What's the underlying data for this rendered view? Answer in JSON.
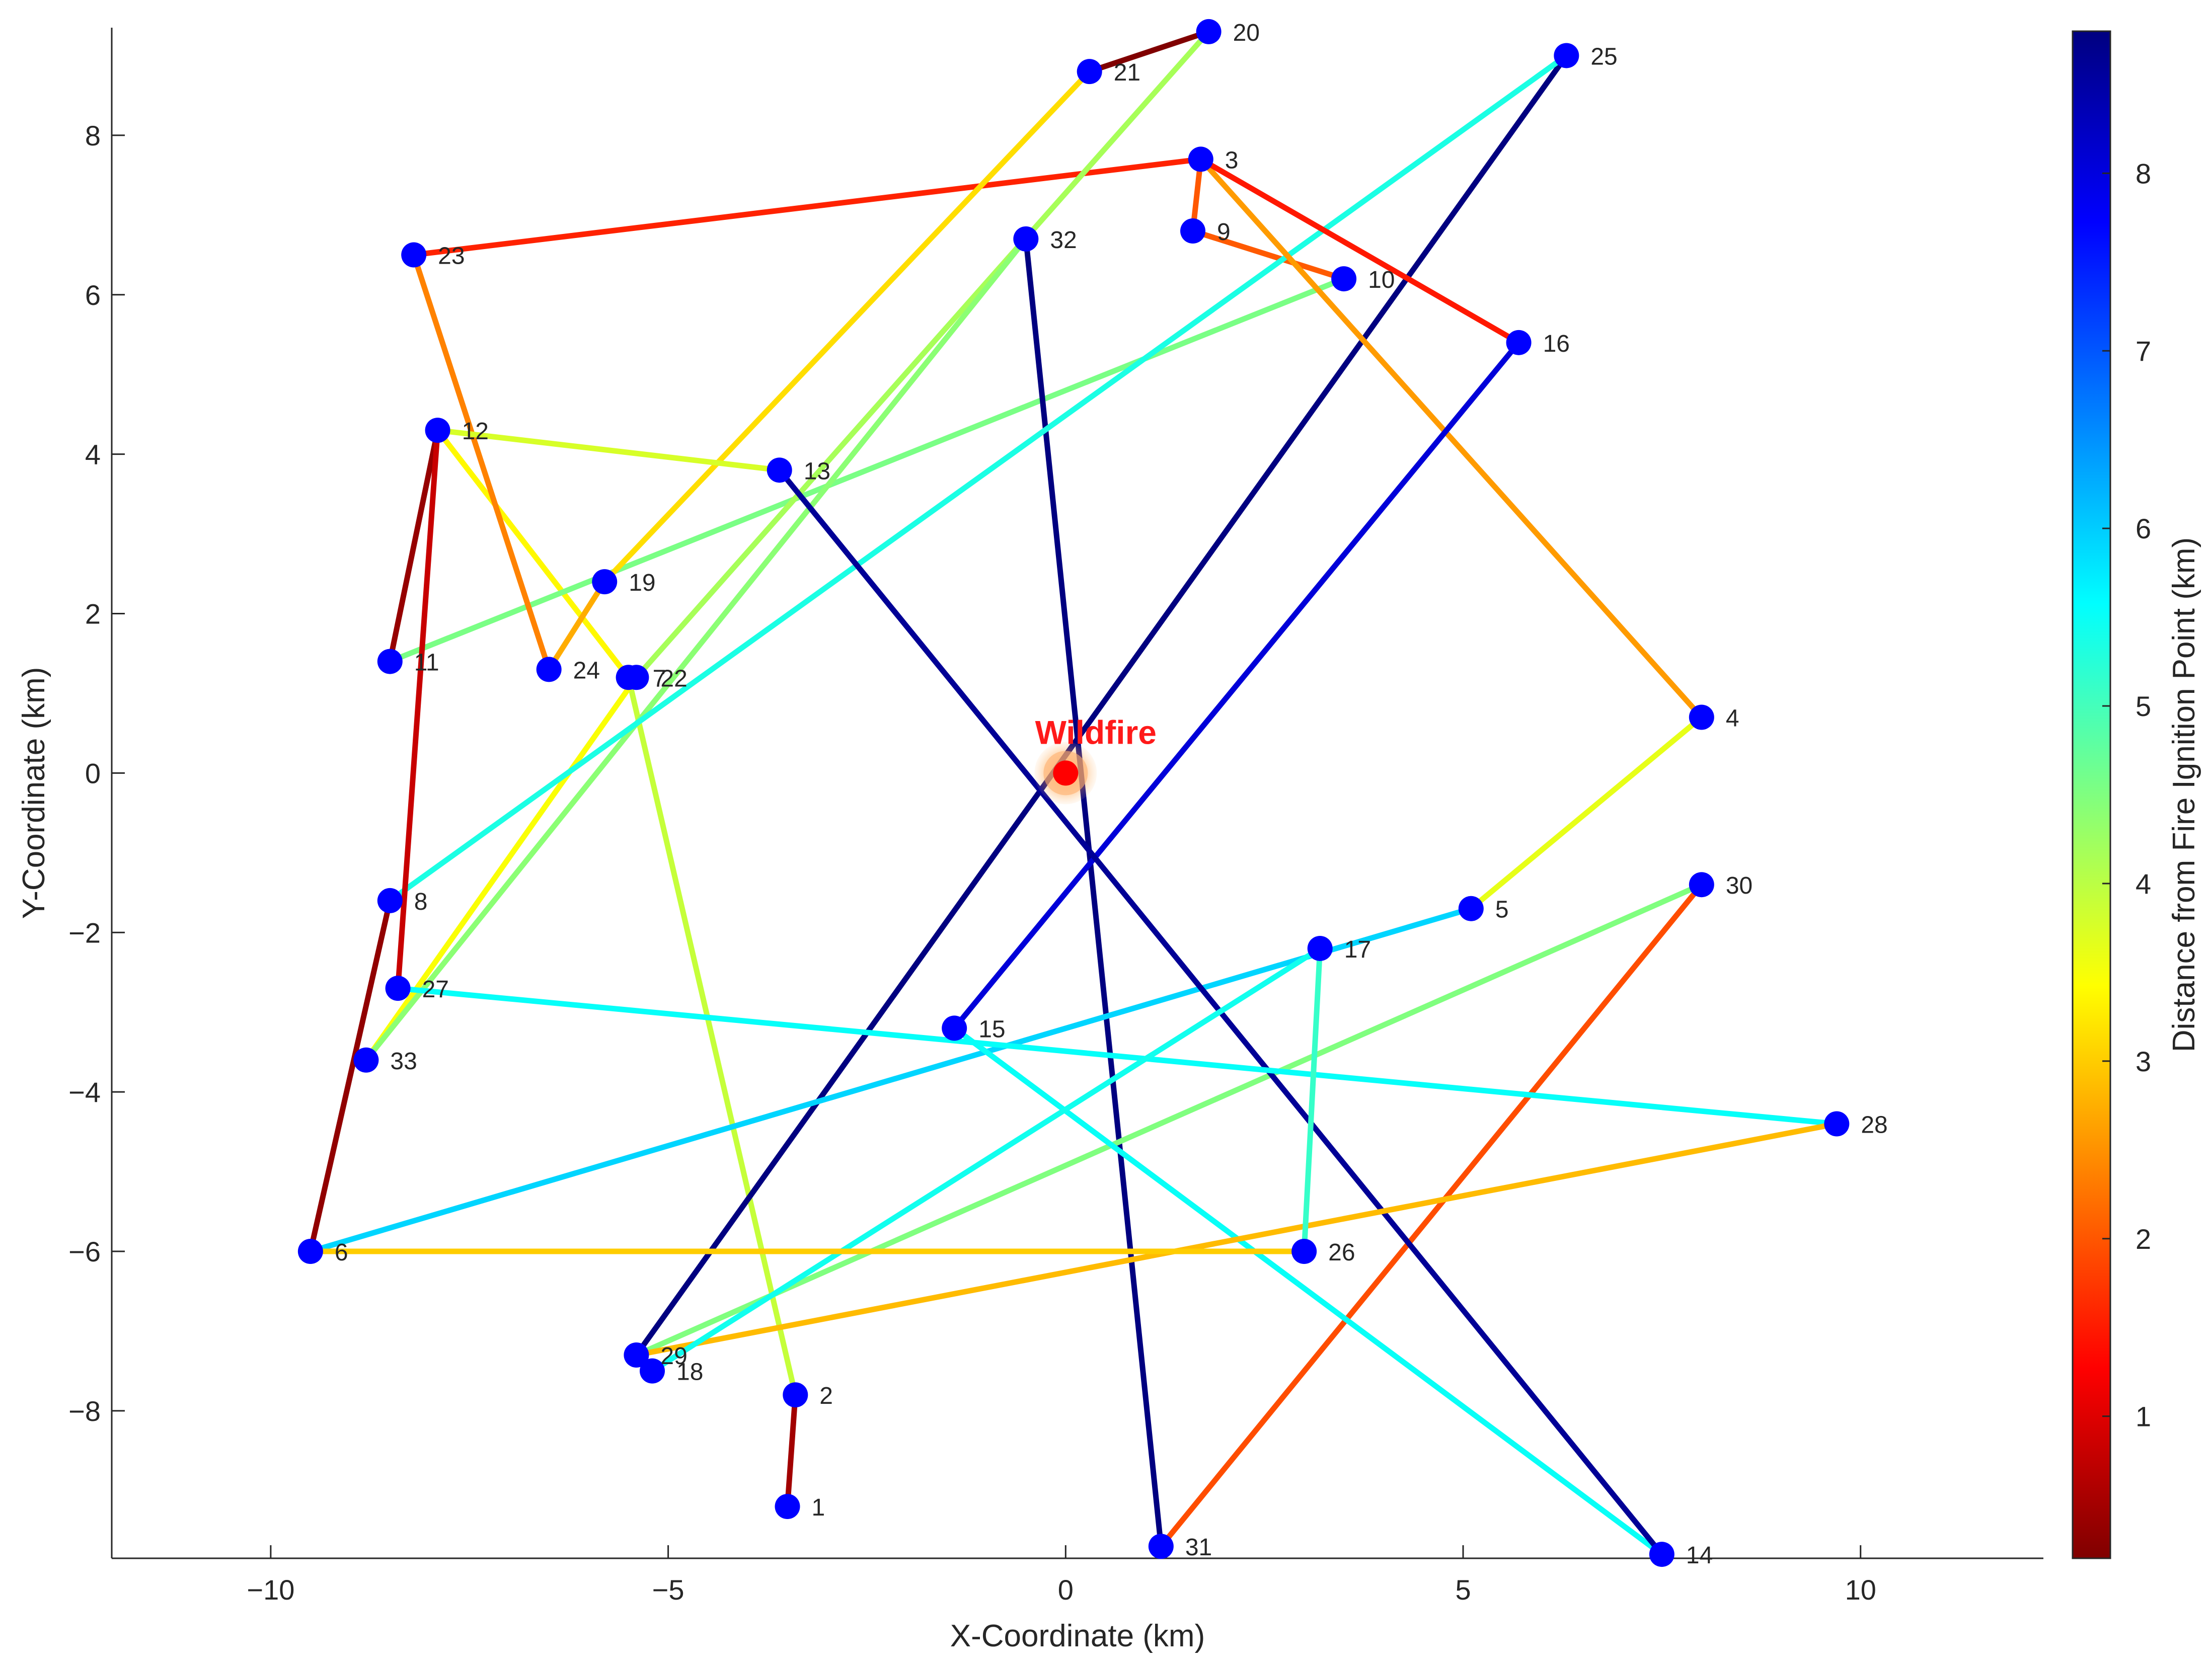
{
  "chart_data": {
    "type": "line",
    "xlabel": "X-Coordinate (km)",
    "ylabel": "Y-Coordinate (km)",
    "xlim": [
      -12,
      12.3
    ],
    "ylim": [
      -9.85,
      9.35
    ],
    "xticks": [
      -10,
      -5,
      0,
      5,
      10
    ],
    "yticks": [
      -8,
      -6,
      -4,
      -2,
      0,
      2,
      4,
      6,
      8
    ],
    "xtick_labels": [
      "−10",
      "−5",
      "0",
      "5",
      "10"
    ],
    "ytick_labels": [
      "−8",
      "−6",
      "−4",
      "−2",
      "0",
      "2",
      "4",
      "6",
      "8"
    ],
    "grid": false,
    "colorbar": {
      "label": "Distance from Fire Ignition Point (km)",
      "colormap": "jet",
      "range": [
        0.2,
        8.8
      ],
      "ticks": [
        1,
        2,
        3,
        4,
        5,
        6,
        7,
        8
      ],
      "tick_labels": [
        "1",
        "2",
        "3",
        "4",
        "5",
        "6",
        "7",
        "8"
      ]
    },
    "wildfire": {
      "label": "Wildfire",
      "x": 0,
      "y": 0,
      "color": "#ff0000"
    },
    "points": [
      {
        "id": 1,
        "label": "1",
        "x": -3.5,
        "y": -9.2
      },
      {
        "id": 2,
        "label": "2",
        "x": -3.4,
        "y": -7.8
      },
      {
        "id": 3,
        "label": "3",
        "x": 1.7,
        "y": 7.7
      },
      {
        "id": 4,
        "label": "4",
        "x": 8.0,
        "y": 0.7
      },
      {
        "id": 5,
        "label": "5",
        "x": 5.1,
        "y": -1.7
      },
      {
        "id": 6,
        "label": "6",
        "x": -9.5,
        "y": -6.0
      },
      {
        "id": 7,
        "label": "7",
        "x": -5.5,
        "y": 1.2
      },
      {
        "id": 8,
        "label": "8",
        "x": -8.5,
        "y": -1.6
      },
      {
        "id": 9,
        "label": "9",
        "x": 1.6,
        "y": 6.8
      },
      {
        "id": 10,
        "label": "10",
        "x": 3.5,
        "y": 6.2
      },
      {
        "id": 11,
        "label": "11",
        "x": -8.5,
        "y": 1.4
      },
      {
        "id": 12,
        "label": "12",
        "x": -7.9,
        "y": 4.3
      },
      {
        "id": 13,
        "label": "13",
        "x": -3.6,
        "y": 3.8
      },
      {
        "id": 14,
        "label": "14",
        "x": 7.5,
        "y": -9.8
      },
      {
        "id": 15,
        "label": "15",
        "x": -1.4,
        "y": -3.2
      },
      {
        "id": 16,
        "label": "16",
        "x": 5.7,
        "y": 5.4
      },
      {
        "id": 17,
        "label": "17",
        "x": 3.2,
        "y": -2.2
      },
      {
        "id": 18,
        "label": "18",
        "x": -5.2,
        "y": -7.5
      },
      {
        "id": 19,
        "label": "19",
        "x": -5.8,
        "y": 2.4
      },
      {
        "id": 20,
        "label": "20",
        "x": 1.8,
        "y": 9.3
      },
      {
        "id": 21,
        "label": "21",
        "x": 0.3,
        "y": 8.8
      },
      {
        "id": 22,
        "label": "22",
        "x": -5.4,
        "y": 1.2
      },
      {
        "id": 23,
        "label": "23",
        "x": -8.2,
        "y": 6.5
      },
      {
        "id": 24,
        "label": "24",
        "x": -6.5,
        "y": 1.3
      },
      {
        "id": 25,
        "label": "25",
        "x": 6.3,
        "y": 9.0
      },
      {
        "id": 26,
        "label": "26",
        "x": 3.0,
        "y": -6.0
      },
      {
        "id": 27,
        "label": "27",
        "x": -8.4,
        "y": -2.7
      },
      {
        "id": 28,
        "label": "28",
        "x": 9.7,
        "y": -4.4
      },
      {
        "id": 29,
        "label": "29",
        "x": -5.4,
        "y": -7.3
      },
      {
        "id": 30,
        "label": "30",
        "x": 8.0,
        "y": -1.4
      },
      {
        "id": 31,
        "label": "31",
        "x": 1.2,
        "y": -9.7
      },
      {
        "id": 32,
        "label": "32",
        "x": -0.5,
        "y": 6.7
      },
      {
        "id": 33,
        "label": "33",
        "x": -8.8,
        "y": -3.6
      }
    ],
    "route": [
      1,
      2,
      7,
      12,
      11,
      10,
      9,
      3,
      23,
      24,
      19,
      21,
      20,
      22,
      33,
      32,
      31,
      30,
      29,
      25,
      8,
      6,
      5,
      4,
      3,
      16,
      15,
      14,
      13,
      12,
      27,
      28,
      29,
      18,
      17,
      26,
      6
    ]
  }
}
